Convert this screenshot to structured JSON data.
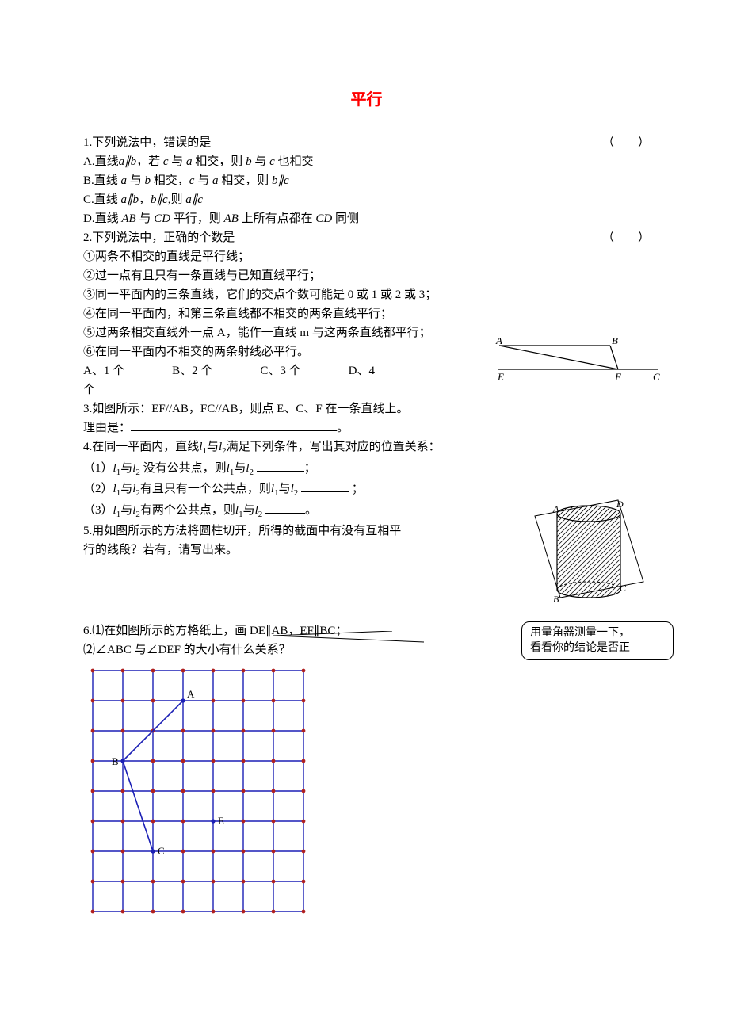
{
  "title": "平行",
  "q1": {
    "stem": "1.下列说法中，错误的是",
    "paren": "（　　）",
    "opts": {
      "a_pre": "A.直线",
      "a_mid1": "a∥b",
      "a_mid2": "，若 ",
      "a_mid3": "c",
      "a_mid4": " 与 ",
      "a_mid5": "a",
      "a_mid6": " 相交，则 ",
      "a_mid7": "b",
      "a_mid8": " 与 ",
      "a_mid9": "c",
      "a_end": " 也相交",
      "b_pre": "B.直线 ",
      "b_mid1": "a",
      "b_mid2": " 与 ",
      "b_mid3": "b",
      "b_mid4": " 相交，",
      "b_mid5": "c",
      "b_mid6": " 与 ",
      "b_mid7": "a",
      "b_mid8": " 相交，则 ",
      "b_mid9": "b∥c",
      "c_pre": "C.直线 ",
      "c_mid1": "a∥b",
      "c_mid2": "，",
      "c_mid3": "b∥c",
      "c_mid4": ",则 ",
      "c_mid5": "a∥c",
      "d_pre": "D.直线 ",
      "d_mid1": "AB",
      "d_mid2": " 与 ",
      "d_mid3": "CD",
      "d_mid4": " 平行，则 ",
      "d_mid5": "AB",
      "d_mid6": " 上所有点都在 ",
      "d_mid7": "CD",
      "d_end": " 同侧"
    }
  },
  "q2": {
    "stem": "2.下列说法中，正确的个数是",
    "paren": "（　　）",
    "s1": "①两条不相交的直线是平行线；",
    "s2": "②过一点有且只有一条直线与已知直线平行；",
    "s3": "③同一平面内的三条直线，它们的交点个数可能是 0 或 1 或 2 或 3；",
    "s4": "④在同一平面内，和第三条直线都不相交的两条直线平行；",
    "s5": "⑤过两条相交直线外一点 A，能作一直线 m 与这两条直线都平行；",
    "s6": "⑥在同一平面内不相交的两条射线必平行。",
    "opts": {
      "a": "A、1 个",
      "b": "B、2 个",
      "c": "C、3 个",
      "d": "D、4"
    },
    "tail": "个"
  },
  "tri_labels": {
    "A": "A",
    "B": "B",
    "E": "E",
    "F": "F",
    "C": "C"
  },
  "q3": {
    "line1": "3.如图所示：EF//AB，FC//AB，则点 E、C、F 在一条直线上。",
    "line2_pre": "理由是：",
    "line2_end": "。"
  },
  "q4": {
    "stem_pre": "4.在同一平面内，直线",
    "l1": "l",
    "s1": "1",
    "and": "与",
    "l2": "l",
    "s2": "2",
    "stem_post": "满足下列条件，写出其对应的位置关系：",
    "p1_pre": "（1）",
    "p1_mid": " 没有公共点，则",
    "p1_end": "；",
    "p2_pre": "（2）",
    "p2_mid": "有且只有一个公共点，则",
    "p2_end": "；",
    "p3_pre": "（3）",
    "p3_mid": "有两个公共点，则",
    "p3_end": "。"
  },
  "q5": {
    "line1": "5.用如图所示的方法将圆柱切开，所得的截面中有没有互相平",
    "line2": "行的线段？若有，请写出来。"
  },
  "cyl_labels": {
    "A": "A",
    "B": "B",
    "C": "C",
    "D": "D"
  },
  "q6": {
    "line1": "6.⑴在如图所示的方格纸上，画 DE∥AB，EF∥BC；",
    "line2": "⑵∠ABC 与∠DEF 的大小有什么关系？"
  },
  "callout": {
    "l1": "用量角器测量一下，",
    "l2": "看看你的结论是否正"
  },
  "grid": {
    "cols": 7,
    "rows": 8,
    "cell": 38,
    "labels": {
      "A": "A",
      "B": "B",
      "C": "C",
      "E": "E"
    },
    "line_color": "#1b1fb5",
    "dot_color": "#b02020"
  }
}
